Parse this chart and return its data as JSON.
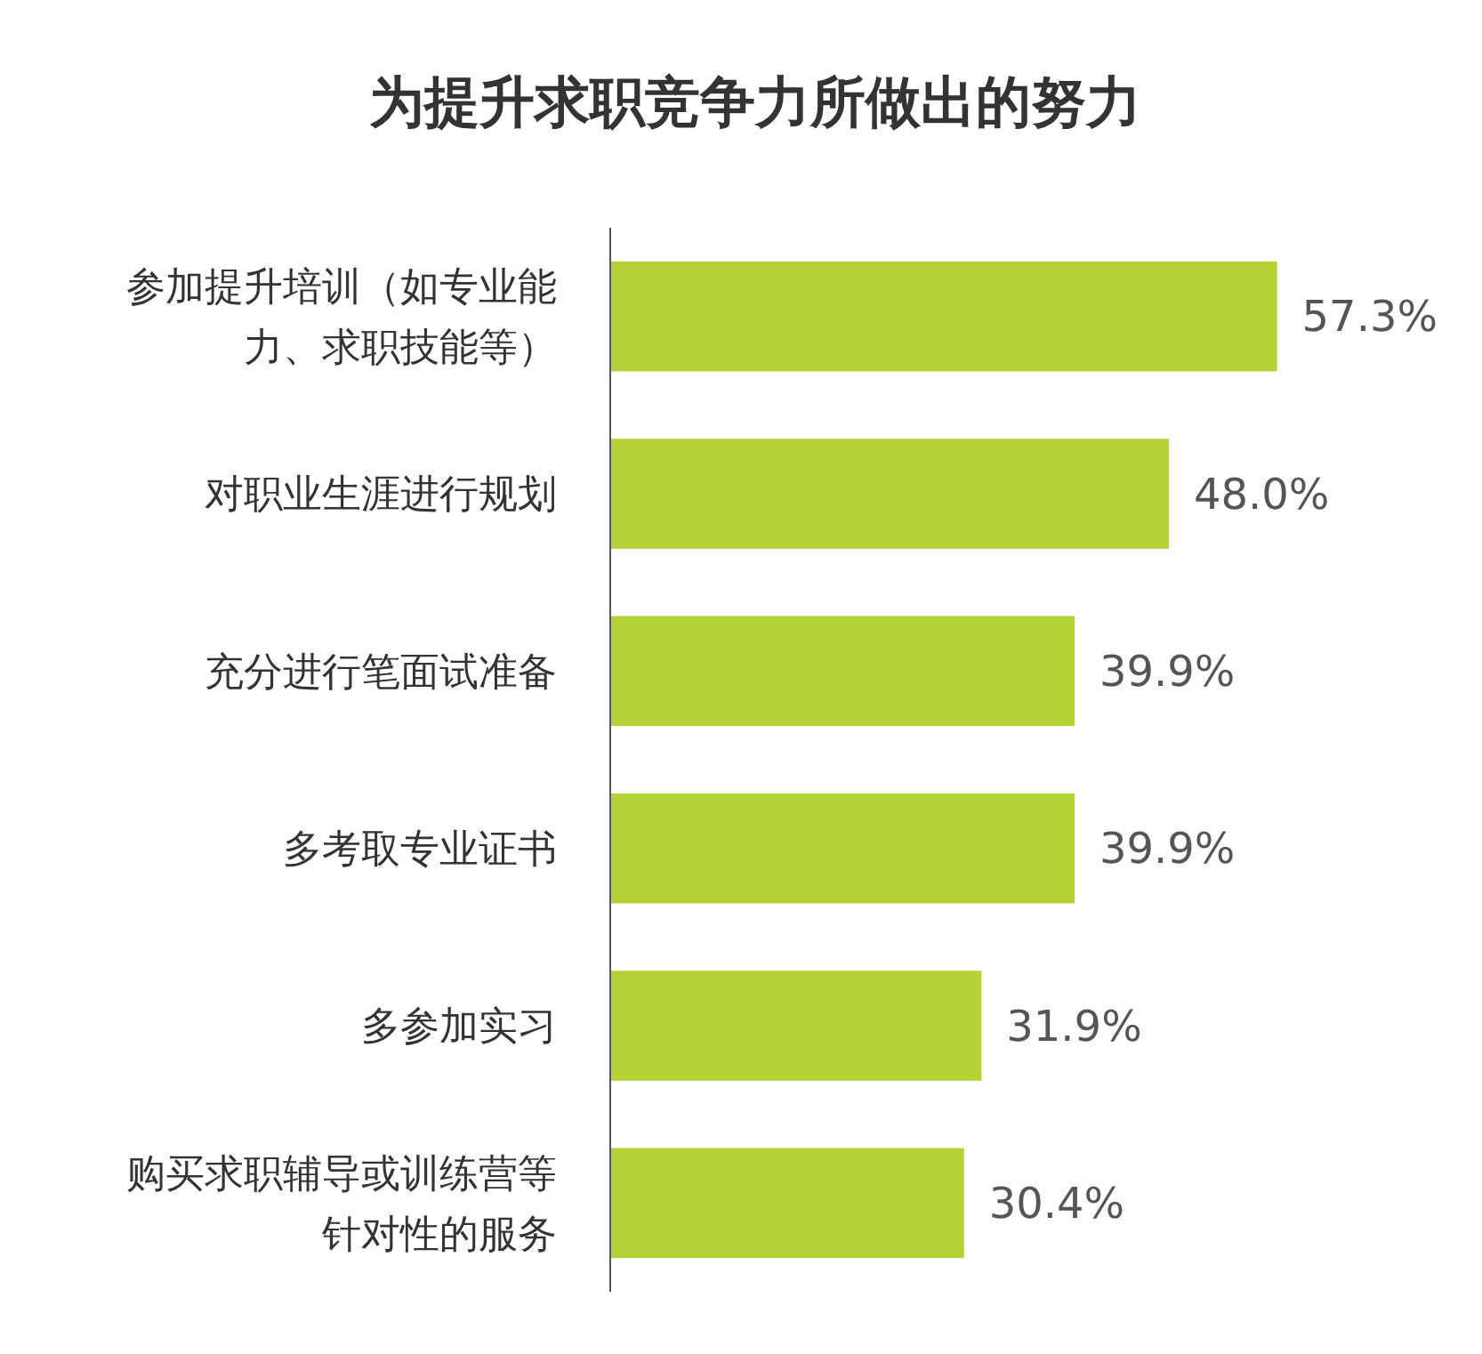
{
  "chart_data": {
    "type": "bar",
    "orientation": "horizontal",
    "title": "为提升求职竞争力所做出的努力",
    "categories": [
      "参加提升培训（如专业能力、求职技能等）",
      "对职业生涯进行规划",
      "充分进行笔面试准备",
      "多考取专业证书",
      "多参加实习",
      "购买求职辅导或训练营等针对性的服务"
    ],
    "values": [
      57.3,
      48.0,
      39.9,
      39.9,
      31.9,
      30.4
    ],
    "value_labels": [
      "57.3%",
      "48.0%",
      "39.9%",
      "39.9%",
      "31.9%",
      "30.4%"
    ],
    "color": "#b2d235",
    "tick_labels": "y"
  }
}
